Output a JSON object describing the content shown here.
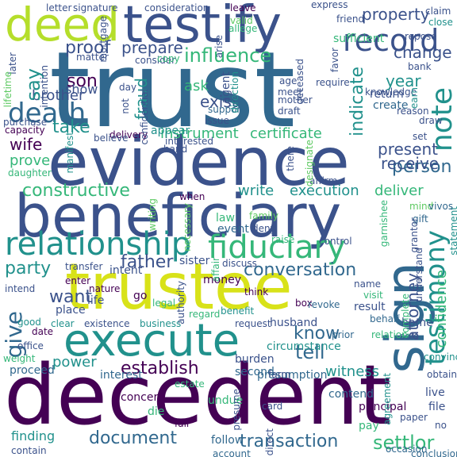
{
  "palette": {
    "background": "#ffffff",
    "dark_purple": "#440154",
    "indigo": "#3b528b",
    "blue": "#31688e",
    "teal": "#21918c",
    "green": "#35b779",
    "light_green": "#5ec962",
    "yellow_green": "#b5de2b",
    "yellow": "#d8e219"
  },
  "words": [
    {
      "text": "trust"
    },
    {
      "text": "decedent"
    },
    {
      "text": "evidence"
    },
    {
      "text": "beneficiary"
    },
    {
      "text": "trustee"
    },
    {
      "text": "testify"
    },
    {
      "text": "execute"
    },
    {
      "text": "sign"
    },
    {
      "text": "deed"
    },
    {
      "text": "relationship"
    },
    {
      "text": "fiduciary"
    },
    {
      "text": "testimony"
    },
    {
      "text": "record"
    },
    {
      "text": "death"
    },
    {
      "text": "note"
    },
    {
      "text": "document"
    },
    {
      "text": "transaction"
    },
    {
      "text": "influence"
    },
    {
      "text": "constructive"
    },
    {
      "text": "establish"
    },
    {
      "text": "instrument"
    },
    {
      "text": "certificate"
    },
    {
      "text": "conversation"
    },
    {
      "text": "person"
    },
    {
      "text": "property"
    },
    {
      "text": "prove"
    },
    {
      "text": "son"
    },
    {
      "text": "proof"
    },
    {
      "text": "prepare"
    },
    {
      "text": "brother"
    },
    {
      "text": "wife"
    },
    {
      "text": "say"
    },
    {
      "text": "take"
    },
    {
      "text": "know"
    },
    {
      "text": "tell"
    },
    {
      "text": "father"
    },
    {
      "text": "party"
    },
    {
      "text": "want"
    },
    {
      "text": "give"
    },
    {
      "text": "write"
    },
    {
      "text": "execution"
    },
    {
      "text": "deliver"
    },
    {
      "text": "receive"
    },
    {
      "text": "present"
    },
    {
      "text": "change"
    },
    {
      "text": "year"
    },
    {
      "text": "indicate"
    },
    {
      "text": "exist"
    },
    {
      "text": "ask"
    },
    {
      "text": "show"
    },
    {
      "text": "fraud"
    },
    {
      "text": "witness"
    },
    {
      "text": "power"
    },
    {
      "text": "settlor"
    },
    {
      "text": "attorney"
    },
    {
      "text": "confidence"
    },
    {
      "text": "statement"
    },
    {
      "text": "finding"
    },
    {
      "text": "concern"
    },
    {
      "text": "undue"
    },
    {
      "text": "principal"
    },
    {
      "text": "contend"
    },
    {
      "text": "interest"
    },
    {
      "text": "estate"
    },
    {
      "text": "die"
    },
    {
      "text": "follow"
    },
    {
      "text": "account"
    },
    {
      "text": "pay"
    },
    {
      "text": "live"
    },
    {
      "text": "file"
    },
    {
      "text": "card"
    },
    {
      "text": "presumption"
    },
    {
      "text": "burden"
    },
    {
      "text": "second"
    },
    {
      "text": "convincing"
    },
    {
      "text": "home"
    },
    {
      "text": "obtain"
    },
    {
      "text": "sole"
    },
    {
      "text": "husband"
    },
    {
      "text": "circumstance"
    },
    {
      "text": "prior"
    },
    {
      "text": "request"
    },
    {
      "text": "result"
    },
    {
      "text": "name"
    },
    {
      "text": "benefit"
    },
    {
      "text": "regard"
    },
    {
      "text": "business"
    },
    {
      "text": "existence"
    },
    {
      "text": "date"
    },
    {
      "text": "clear"
    },
    {
      "text": "office"
    },
    {
      "text": "good"
    },
    {
      "text": "proceed"
    },
    {
      "text": "weight"
    },
    {
      "text": "place"
    },
    {
      "text": "life"
    },
    {
      "text": "nature"
    },
    {
      "text": "intent"
    },
    {
      "text": "intend"
    },
    {
      "text": "enter"
    },
    {
      "text": "transfer"
    },
    {
      "text": "money"
    },
    {
      "text": "sister"
    },
    {
      "text": "affair"
    },
    {
      "text": "discuss"
    },
    {
      "text": "think"
    },
    {
      "text": "box"
    },
    {
      "text": "revoke"
    },
    {
      "text": "visit"
    },
    {
      "text": "complete"
    },
    {
      "text": "understand"
    },
    {
      "text": "behalf"
    },
    {
      "text": "relation"
    },
    {
      "text": "set"
    },
    {
      "text": "mind"
    },
    {
      "text": "vivos"
    },
    {
      "text": "gift"
    },
    {
      "text": "grantor"
    },
    {
      "text": "garnishee"
    },
    {
      "text": "raise"
    },
    {
      "text": "control"
    },
    {
      "text": "law"
    },
    {
      "text": "event"
    },
    {
      "text": "deny"
    },
    {
      "text": "family"
    },
    {
      "text": "affirm"
    },
    {
      "text": "when"
    },
    {
      "text": "there"
    },
    {
      "text": "designate"
    },
    {
      "text": "appear"
    },
    {
      "text": "delivery"
    },
    {
      "text": "believe"
    },
    {
      "text": "interested"
    },
    {
      "text": "hand"
    },
    {
      "text": "issue"
    },
    {
      "text": "support"
    },
    {
      "text": "draft"
    },
    {
      "text": "mother"
    },
    {
      "text": "meet"
    },
    {
      "text": "age"
    },
    {
      "text": "agent"
    },
    {
      "text": "direction"
    },
    {
      "text": "deceased"
    },
    {
      "text": "require"
    },
    {
      "text": "knowledge"
    },
    {
      "text": "return"
    },
    {
      "text": "create"
    },
    {
      "text": "reason"
    },
    {
      "text": "draw"
    },
    {
      "text": "earn"
    },
    {
      "text": "bank"
    },
    {
      "text": "repose"
    },
    {
      "text": "sufficient"
    },
    {
      "text": "friend"
    },
    {
      "text": "claim"
    },
    {
      "text": "close"
    },
    {
      "text": "express"
    },
    {
      "text": "favor"
    },
    {
      "text": "leave"
    },
    {
      "text": "valid"
    },
    {
      "text": "allege"
    },
    {
      "text": "arise"
    },
    {
      "text": "consideration"
    },
    {
      "text": "consider"
    },
    {
      "text": "copy"
    },
    {
      "text": "letter"
    },
    {
      "text": "signature"
    },
    {
      "text": "mortgage"
    },
    {
      "text": "matter"
    },
    {
      "text": "later"
    },
    {
      "text": "intention"
    },
    {
      "text": "lifetime"
    },
    {
      "text": "confidential"
    },
    {
      "text": "day"
    },
    {
      "text": "not"
    },
    {
      "text": "purchase"
    },
    {
      "text": "capacity"
    },
    {
      "text": "manifest"
    },
    {
      "text": "daughter"
    },
    {
      "text": "writing"
    },
    {
      "text": "necessary"
    },
    {
      "text": "authority"
    },
    {
      "text": "legal"
    },
    {
      "text": "go"
    },
    {
      "text": "farm"
    },
    {
      "text": "presume"
    },
    {
      "text": "direct"
    },
    {
      "text": "fail"
    },
    {
      "text": "agreement"
    },
    {
      "text": "contain"
    },
    {
      "text": "paper"
    },
    {
      "text": "occasion"
    },
    {
      "text": "conclusion"
    },
    {
      "text": "no"
    }
  ]
}
